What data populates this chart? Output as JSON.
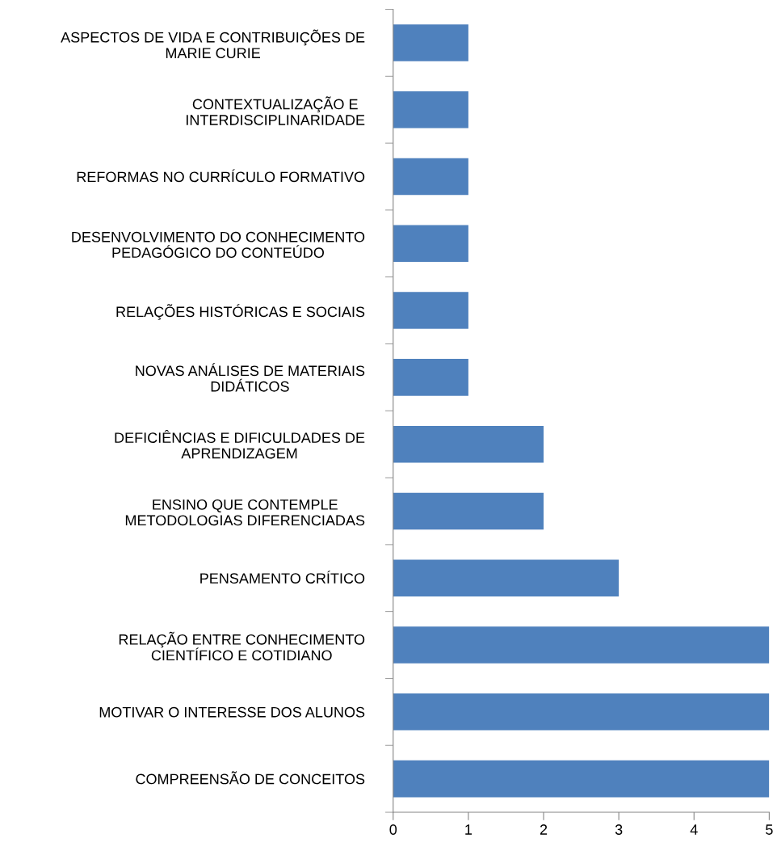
{
  "chart_data": {
    "type": "bar",
    "orientation": "horizontal",
    "categories": [
      "ASPECTOS DE VIDA E CONTRIBUIÇÕES DE\nMARIE CURIE",
      "CONTEXTUALIZAÇÃO E\nINTERDISCIPLINARIDADE",
      "REFORMAS NO CURRÍCULO FORMATIVO",
      "DESENVOLVIMENTO DO CONHECIMENTO\nPEDAGÓGICO DO CONTEÚDO",
      "RELAÇÕES HISTÓRICAS E SOCIAIS",
      "NOVAS ANÁLISES DE MATERIAIS\nDIDÁTICOS",
      "DEFICIÊNCIAS E DIFICULDADES DE\nAPRENDIZAGEM",
      "ENSINO QUE CONTEMPLE\nMETODOLOGIAS DIFERENCIADAS",
      "PENSAMENTO CRÍTICO",
      "RELAÇÃO ENTRE CONHECIMENTO\nCIENTÍFICO E COTIDIANO",
      "MOTIVAR O INTERESSE DOS ALUNOS",
      "COMPREENSÃO DE CONCEITOS"
    ],
    "values": [
      1,
      1,
      1,
      1,
      1,
      1,
      2,
      2,
      3,
      5,
      5,
      5
    ],
    "color": "#4f81bd",
    "xlim": [
      0,
      5
    ],
    "xticks": [
      0,
      1,
      2,
      3,
      4,
      5
    ],
    "grid": false,
    "legend": false
  }
}
